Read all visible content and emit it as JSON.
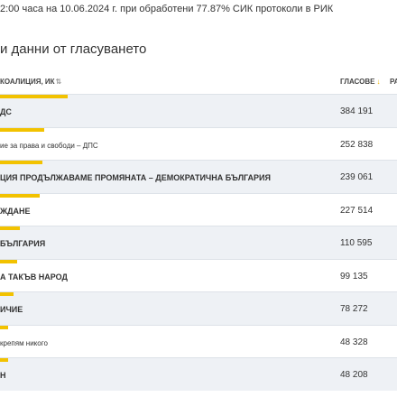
{
  "notice": "2:00 часа на 10.06.2024 г. при обработени 77.87% СИК протоколи в РИК",
  "section_title": "и данни от гласуването",
  "table": {
    "header_name": "КОАЛИЦИЯ, ИК",
    "header_name_sort": "⇅",
    "header_votes": "ГЛАСОВЕ",
    "header_votes_sort": "↓",
    "header_pct": "РА",
    "rows": [
      {
        "name": "ДС",
        "votes": "384 191",
        "bar_pct": 100
      },
      {
        "name": "ие за права и свободи – ДПС",
        "votes": "252 838",
        "bar_pct": 65.8
      },
      {
        "name": "ЦИЯ ПРОДЪЛЖАВАМЕ ПРОМЯНАТА – ДЕМОКРАТИЧНА БЪЛГАРИЯ",
        "votes": "239 061",
        "bar_pct": 62.2
      },
      {
        "name": "ЖДАНЕ",
        "votes": "227 514",
        "bar_pct": 59.2
      },
      {
        "name": "БЪЛГАРИЯ",
        "votes": "110 595",
        "bar_pct": 28.8
      },
      {
        "name": "А ТАКЪВ НАРОД",
        "votes": "99 135",
        "bar_pct": 25.8
      },
      {
        "name": "ИЧИЕ",
        "votes": "78 272",
        "bar_pct": 20.4
      },
      {
        "name": "крепям никого",
        "votes": "48 328",
        "bar_pct": 12.6
      },
      {
        "name": "Н",
        "votes": "48 208",
        "bar_pct": 12.5
      }
    ]
  },
  "colors": {
    "accent_bar": "#f2c200",
    "row_alt": "#eef1f5",
    "divider": "#dde2e8"
  }
}
